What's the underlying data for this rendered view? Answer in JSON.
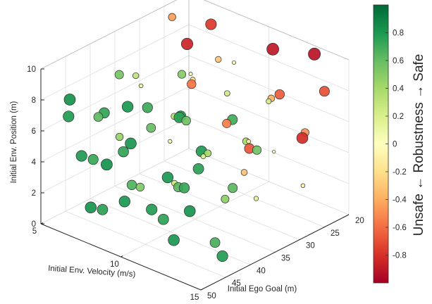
{
  "chart_data": {
    "type": "scatter",
    "subtype": "3d-bubble-scatter",
    "title": "",
    "xlabel": "Initial Ego Goal (m)",
    "ylabel": "Initial Env. Velocity (m/s)",
    "zlabel": "Initial Env. Position (m)",
    "x_range": [
      20,
      50
    ],
    "y_range": [
      5,
      15
    ],
    "z_range": [
      0,
      10
    ],
    "x_ticks": [
      "20",
      "25",
      "30",
      "35",
      "40",
      "45",
      "50"
    ],
    "y_ticks": [
      "5",
      "10",
      "15"
    ],
    "z_ticks": [
      "0",
      "2",
      "4",
      "6",
      "8",
      "10"
    ],
    "grid": true,
    "colorbar": {
      "label": "Unsafe ← Robustness → Safe",
      "range": [
        -1,
        1
      ],
      "ticks": [
        "0.8",
        "0.6",
        "0.4",
        "0.2",
        "0",
        "-0.2",
        "-0.4",
        "-0.6",
        "-0.8"
      ],
      "tick_values": [
        0.8,
        0.6,
        0.4,
        0.2,
        0,
        -0.2,
        -0.4,
        -0.6,
        -0.8
      ],
      "colormap": [
        "#a50026",
        "#d73027",
        "#f46d43",
        "#fdae61",
        "#fee08b",
        "#ffffbf",
        "#d9ef8b",
        "#a6d96a",
        "#66bd63",
        "#1a9850",
        "#006837"
      ]
    },
    "marker_size_encodes": "absolute robustness",
    "points": [
      {
        "x": 48,
        "y": 7.5,
        "z": 1.8,
        "r": 0.82
      },
      {
        "x": 46,
        "y": 9.0,
        "z": 2.5,
        "r": 0.8
      },
      {
        "x": 47,
        "y": 11.0,
        "z": 3.0,
        "r": 0.78
      },
      {
        "x": 49,
        "y": 13.0,
        "z": 2.2,
        "r": 0.81
      },
      {
        "x": 45,
        "y": 6.0,
        "z": 4.0,
        "r": 0.79
      },
      {
        "x": 48,
        "y": 8.5,
        "z": 5.0,
        "r": 0.83
      },
      {
        "x": 47,
        "y": 12.0,
        "z": 5.5,
        "r": 0.8
      },
      {
        "x": 49,
        "y": 14.0,
        "z": 4.5,
        "r": 0.82
      },
      {
        "x": 46,
        "y": 5.5,
        "z": 6.5,
        "r": 0.78
      },
      {
        "x": 48,
        "y": 10.0,
        "z": 7.0,
        "r": 0.81
      },
      {
        "x": 45,
        "y": 13.5,
        "z": 7.5,
        "r": 0.79
      },
      {
        "x": 49,
        "y": 6.5,
        "z": 8.5,
        "r": 0.83
      },
      {
        "x": 47,
        "y": 9.5,
        "z": 9.0,
        "r": 0.8
      },
      {
        "x": 46,
        "y": 12.5,
        "z": 9.5,
        "r": 0.77
      },
      {
        "x": 44,
        "y": 7.0,
        "z": 0.8,
        "r": 0.76
      },
      {
        "x": 43,
        "y": 10.5,
        "z": 1.5,
        "r": 0.75
      },
      {
        "x": 44,
        "y": 14.5,
        "z": 1.0,
        "r": 0.78
      },
      {
        "x": 42,
        "y": 5.8,
        "z": 3.2,
        "r": 0.72
      },
      {
        "x": 43,
        "y": 8.0,
        "z": 4.8,
        "r": 0.74
      },
      {
        "x": 42,
        "y": 11.5,
        "z": 3.8,
        "r": 0.73
      },
      {
        "x": 44,
        "y": 13.0,
        "z": 6.0,
        "r": 0.76
      },
      {
        "x": 43,
        "y": 6.8,
        "z": 6.8,
        "r": 0.74
      },
      {
        "x": 42,
        "y": 9.2,
        "z": 8.0,
        "r": 0.71
      },
      {
        "x": 44,
        "y": 11.8,
        "z": 8.8,
        "r": 0.75
      },
      {
        "x": 41,
        "y": 14.2,
        "z": 9.2,
        "r": 0.7
      },
      {
        "x": 40,
        "y": 7.6,
        "z": 2.0,
        "r": 0.66
      },
      {
        "x": 39,
        "y": 10.2,
        "z": 2.8,
        "r": 0.64
      },
      {
        "x": 40,
        "y": 12.8,
        "z": 0.5,
        "r": 0.68
      },
      {
        "x": 39,
        "y": 5.2,
        "z": 5.2,
        "r": 0.62
      },
      {
        "x": 40,
        "y": 8.8,
        "z": 6.2,
        "r": 0.6
      },
      {
        "x": 39,
        "y": 13.6,
        "z": 4.2,
        "r": 0.63
      },
      {
        "x": 40,
        "y": 11.0,
        "z": 7.6,
        "r": 0.58
      },
      {
        "x": 38,
        "y": 6.2,
        "z": 8.2,
        "r": 0.55
      },
      {
        "x": 38,
        "y": 14.8,
        "z": 7.0,
        "r": 0.57
      },
      {
        "x": 37,
        "y": 9.8,
        "z": 9.6,
        "r": 0.5
      },
      {
        "x": 37,
        "y": 7.2,
        "z": 1.2,
        "r": 0.52
      },
      {
        "x": 36,
        "y": 12.2,
        "z": 2.4,
        "r": 0.48
      },
      {
        "x": 36,
        "y": 5.6,
        "z": 3.6,
        "r": 0.45
      },
      {
        "x": 35,
        "y": 10.8,
        "z": 4.6,
        "r": 0.4
      },
      {
        "x": 35,
        "y": 13.2,
        "z": 6.4,
        "r": 0.38
      },
      {
        "x": 34,
        "y": 8.4,
        "z": 5.8,
        "r": 0.33
      },
      {
        "x": 34,
        "y": 6.0,
        "z": 7.4,
        "r": 0.3
      },
      {
        "x": 33,
        "y": 11.4,
        "z": 8.4,
        "r": 0.25
      },
      {
        "x": 33,
        "y": 14.0,
        "z": 9.0,
        "r": 0.22
      },
      {
        "x": 32,
        "y": 7.8,
        "z": 0.9,
        "r": 0.28
      },
      {
        "x": 32,
        "y": 9.6,
        "z": 3.4,
        "r": 0.18
      },
      {
        "x": 31,
        "y": 12.6,
        "z": 1.8,
        "r": 0.15
      },
      {
        "x": 31,
        "y": 5.4,
        "z": 6.0,
        "r": 0.1
      },
      {
        "x": 30,
        "y": 8.2,
        "z": 7.8,
        "r": 0.05
      },
      {
        "x": 30,
        "y": 13.4,
        "z": 5.0,
        "r": 0.02
      },
      {
        "x": 29,
        "y": 10.6,
        "z": 9.4,
        "r": -0.05
      },
      {
        "x": 29,
        "y": 6.6,
        "z": 2.6,
        "r": 0.08
      },
      {
        "x": 28,
        "y": 11.2,
        "z": 4.4,
        "r": -0.12
      },
      {
        "x": 28,
        "y": 14.6,
        "z": 3.0,
        "r": -0.1
      },
      {
        "x": 27,
        "y": 7.4,
        "z": 6.6,
        "r": -0.22
      },
      {
        "x": 27,
        "y": 9.0,
        "z": 8.6,
        "r": -0.3
      },
      {
        "x": 26,
        "y": 12.0,
        "z": 7.2,
        "r": -0.38
      },
      {
        "x": 26,
        "y": 5.8,
        "z": 9.8,
        "r": -0.45
      },
      {
        "x": 25,
        "y": 10.0,
        "z": 1.4,
        "r": -0.32
      },
      {
        "x": 25,
        "y": 13.8,
        "z": 5.6,
        "r": -0.5
      },
      {
        "x": 24,
        "y": 8.6,
        "z": 3.8,
        "r": -0.55
      },
      {
        "x": 24,
        "y": 6.4,
        "z": 5.4,
        "r": -0.58
      },
      {
        "x": 23,
        "y": 11.6,
        "z": 6.8,
        "r": -0.66
      },
      {
        "x": 23,
        "y": 14.4,
        "z": 8.2,
        "r": -0.7
      },
      {
        "x": 22,
        "y": 7.0,
        "z": 9.2,
        "r": -0.78
      },
      {
        "x": 22,
        "y": 9.4,
        "z": 2.2,
        "r": -0.68
      },
      {
        "x": 21,
        "y": 12.4,
        "z": 4.0,
        "r": -0.82
      },
      {
        "x": 21,
        "y": 5.2,
        "z": 7.0,
        "r": -0.85
      },
      {
        "x": 20.5,
        "y": 10.4,
        "z": 8.8,
        "r": -0.9
      },
      {
        "x": 20.5,
        "y": 13.0,
        "z": 9.6,
        "r": -0.92
      }
    ]
  }
}
